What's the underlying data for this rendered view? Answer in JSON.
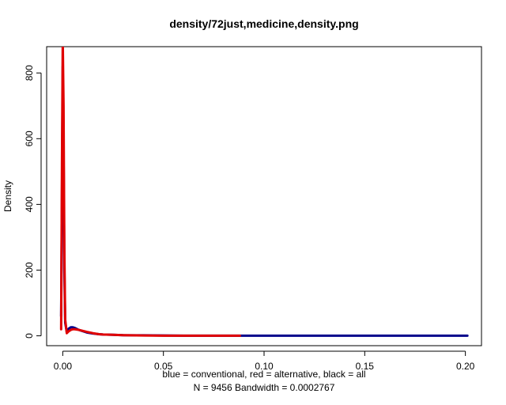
{
  "chart_data": {
    "type": "line",
    "title": "density/72just,medicine,density.png",
    "ylabel": "Density",
    "xlabel_line1": "blue = conventional, red = alternative, black = all",
    "xlabel_line2": "N = 9456   Bandwidth = 0.0002767",
    "xlim": [
      -0.008,
      0.208
    ],
    "ylim": [
      -30,
      880
    ],
    "x_ticks": [
      0.0,
      0.05,
      0.1,
      0.15,
      0.2
    ],
    "x_tick_labels": [
      "0.00",
      "0.05",
      "0.10",
      "0.15",
      "0.20"
    ],
    "y_ticks": [
      0,
      200,
      400,
      600,
      800
    ],
    "y_tick_labels": [
      "0",
      "200",
      "400",
      "600",
      "800"
    ],
    "grid": false,
    "series": [
      {
        "name": "conventional",
        "color": "#00008b",
        "x": [
          -0.0008,
          -0.0004,
          0.0,
          0.0004,
          0.0008,
          0.0012,
          0.002,
          0.003,
          0.004,
          0.005,
          0.006,
          0.008,
          0.01,
          0.012,
          0.015,
          0.018,
          0.02,
          0.025,
          0.03,
          0.04,
          0.05,
          0.06,
          0.088,
          0.1,
          0.15,
          0.2,
          0.201
        ],
        "y": [
          60,
          420,
          820,
          560,
          200,
          40,
          12,
          22,
          26,
          26,
          24,
          18,
          14,
          10,
          7,
          5,
          4,
          3,
          2,
          1.5,
          1,
          0.5,
          0.3,
          0.3,
          0.3,
          0.3,
          0.3
        ]
      },
      {
        "name": "alternative",
        "color": "#e00000",
        "x": [
          -0.0008,
          -0.0004,
          0.0,
          0.0004,
          0.0008,
          0.0012,
          0.002,
          0.003,
          0.004,
          0.005,
          0.006,
          0.008,
          0.01,
          0.012,
          0.015,
          0.018,
          0.02,
          0.025,
          0.03,
          0.04,
          0.05,
          0.06,
          0.088
        ],
        "y": [
          20,
          520,
          900,
          700,
          260,
          50,
          8,
          14,
          18,
          20,
          20,
          18,
          15,
          12,
          8,
          5,
          4,
          3,
          2,
          1,
          0.5,
          0.3,
          0.3
        ]
      }
    ]
  }
}
